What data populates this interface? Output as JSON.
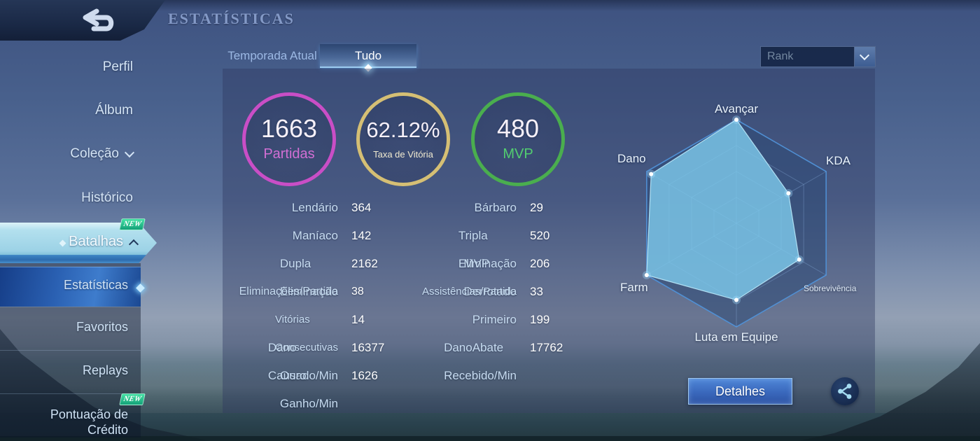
{
  "header": {
    "title": "ESTATÍSTICAS"
  },
  "tabs": {
    "inactive": "Temporada Atual",
    "active": "Tudo"
  },
  "rank_dropdown": {
    "value": "Rank"
  },
  "sidebar": {
    "items": [
      {
        "label": "Perfil"
      },
      {
        "label": "Álbum"
      },
      {
        "label": "Coleção",
        "chevron": "down"
      },
      {
        "label": "Histórico"
      },
      {
        "label": "Batalhas",
        "chevron": "up",
        "badge": "NEW",
        "selected": true
      }
    ],
    "subitems": [
      {
        "label": "Estatísticas",
        "selected": true
      },
      {
        "label": "Favoritos"
      },
      {
        "label": "Replays"
      },
      {
        "label": "Pontuação de Crédito",
        "label_line1": "Pontuação de",
        "label_line2": "Crédito",
        "badge": "NEW"
      }
    ]
  },
  "summary_circles": [
    {
      "value": "1663",
      "label": "Partidas",
      "ring_color": "#c94ec6",
      "label_color": "#d26fd4"
    },
    {
      "value": "62.12%",
      "label": "Taxa de Vitória",
      "ring_color": "#d5bf74",
      "label_color": "#f0ead0"
    },
    {
      "value": "480",
      "label": "MVP",
      "ring_color": "#4aae4e",
      "label_color": "#52cd70"
    }
  ],
  "stats": {
    "col1": [
      {
        "label": "Lendário",
        "value": "364"
      },
      {
        "label": "Maníaco",
        "value": "142"
      },
      {
        "label": "Dupla Eliminação",
        "value": "2162"
      },
      {
        "label": "Eliminações/Partida",
        "value": "38"
      },
      {
        "label": "Vitórias Consecutivas",
        "value": "14"
      },
      {
        "label": "Dano Causado/Min",
        "value": "16377"
      },
      {
        "label": "Ouro Ganho/Min",
        "value": "1626"
      }
    ],
    "col2": [
      {
        "label": "Bárbaro",
        "value": "29"
      },
      {
        "label": "Tripla Eliminação",
        "value": "520"
      },
      {
        "label": "MVP Derrotado",
        "value": "206"
      },
      {
        "label": "Assistências/Partida",
        "value": "33"
      },
      {
        "label": "Primeiro Abate",
        "value": "199"
      },
      {
        "label": "Dano Recebido/Min",
        "value": "17762"
      }
    ]
  },
  "chart_data": {
    "type": "radar",
    "axes": [
      "Avançar",
      "KDA",
      "Sobrevivência",
      "Luta em Equipe",
      "Farm",
      "Dano"
    ],
    "values": [
      1.0,
      0.58,
      0.7,
      0.74,
      1.0,
      0.95
    ],
    "max": 1.0,
    "grid_levels": [
      1.0,
      0.75,
      0.5,
      0.25
    ],
    "legend_position": "none",
    "fill_color": "rgba(124,200,234,0.82)",
    "stroke_color": "rgba(185,232,250,0.9)",
    "outer_fill": "rgba(46,74,118,0.55)",
    "outer_stroke": "rgba(80,145,215,0.95)",
    "grid_color": "rgba(150,190,235,0.30)",
    "dot_color": "#ffffff"
  },
  "actions": {
    "details_label": "Detalhes"
  }
}
